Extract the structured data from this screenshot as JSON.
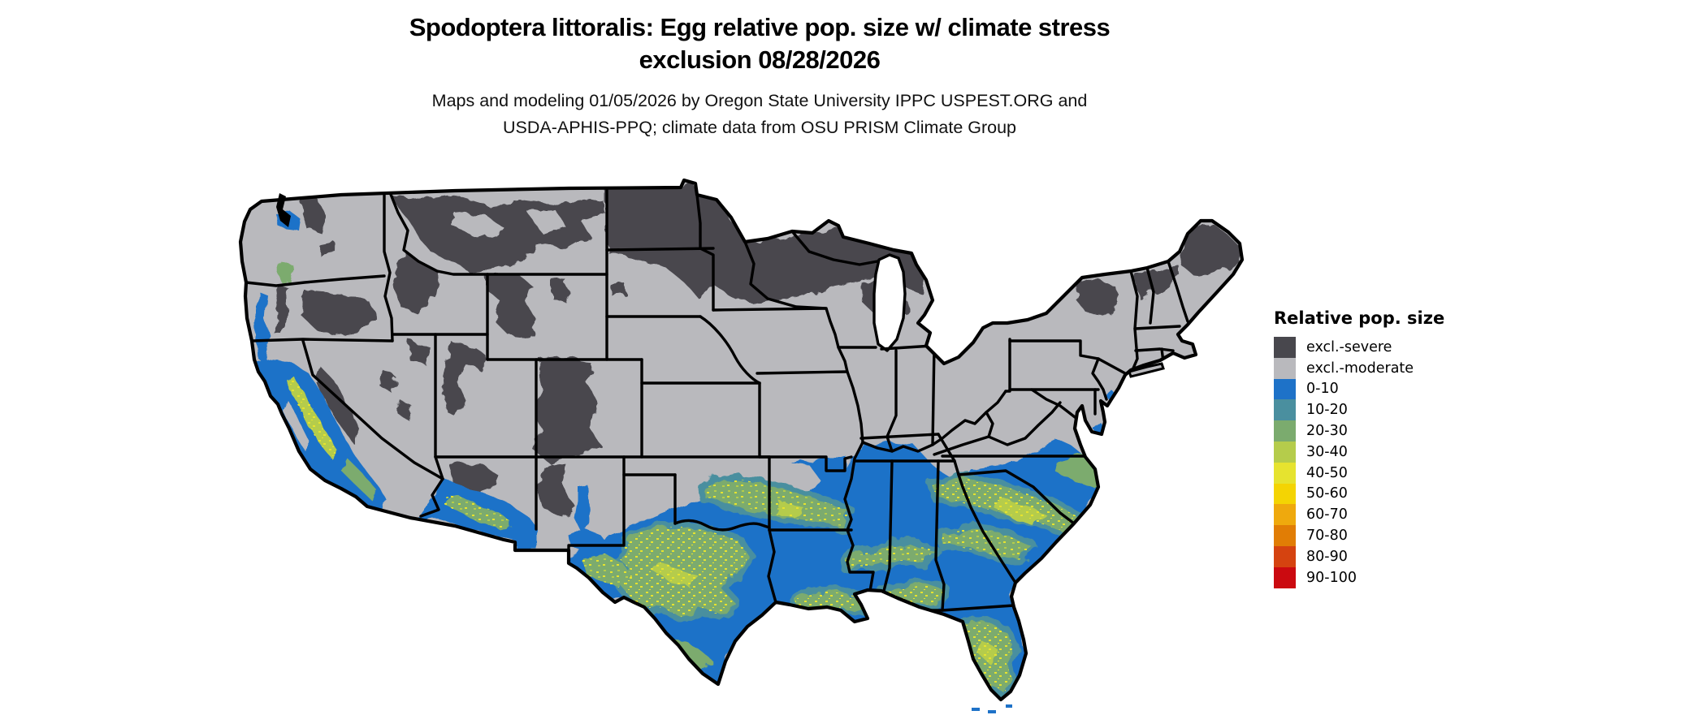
{
  "header": {
    "title_line1": "Spodoptera littoralis: Egg relative pop. size w/ climate stress",
    "title_line2": "exclusion 08/28/2026",
    "subtitle_line1": "Maps and modeling 01/05/2026 by Oregon State University IPPC USPEST.ORG and",
    "subtitle_line2": "USDA-APHIS-PPQ; climate data from OSU PRISM Climate Group"
  },
  "legend": {
    "title": "Relative pop. size",
    "items": [
      {
        "label": "excl.-severe",
        "color": "#48474d"
      },
      {
        "label": "excl.-moderate",
        "color": "#b9b9bd"
      },
      {
        "label": "0-10",
        "color": "#1e72c8"
      },
      {
        "label": "10-20",
        "color": "#4a8f9f"
      },
      {
        "label": "20-30",
        "color": "#7bab6e"
      },
      {
        "label": "30-40",
        "color": "#b5cc4b"
      },
      {
        "label": "40-50",
        "color": "#e6e32f"
      },
      {
        "label": "50-60",
        "color": "#f4d403"
      },
      {
        "label": "60-70",
        "color": "#efa90d"
      },
      {
        "label": "70-80",
        "color": "#e17d05"
      },
      {
        "label": "80-90",
        "color": "#d54310"
      },
      {
        "label": "90-100",
        "color": "#cb0a10"
      }
    ]
  },
  "map": {
    "region": "Continental United States",
    "border_color": "#000000",
    "water_color": "#ffffff",
    "palette": {
      "sev": "#48474d",
      "mod": "#b9b9bd",
      "c010": "#1e72c8",
      "c1020": "#4a8f9f",
      "c2030": "#7bab6e",
      "c3040": "#b5cc4b",
      "c4050": "#e6e32f",
      "c5060": "#f4d403",
      "c6070": "#efa90d",
      "c7080": "#e17d05",
      "c8090": "#d54310",
      "c90100": "#cb0a10"
    }
  }
}
